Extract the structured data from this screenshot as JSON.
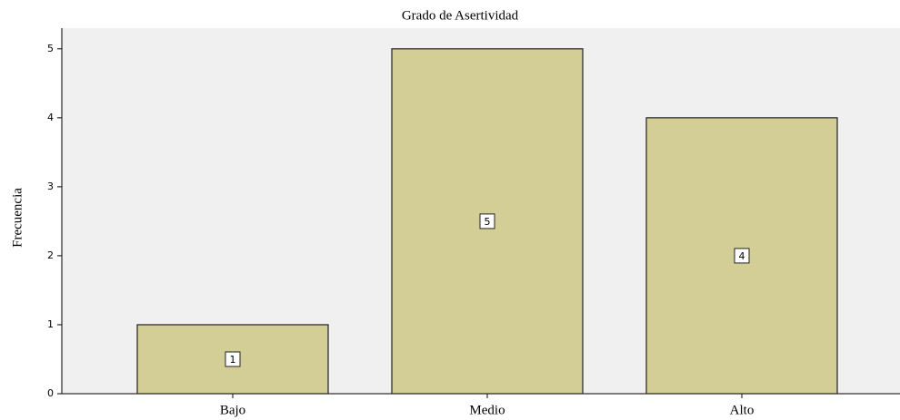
{
  "chart_data": {
    "type": "bar",
    "title": "Grado de Asertividad",
    "y_label": "Frecuencia",
    "categories": [
      "Bajo",
      "Medio",
      "Alto"
    ],
    "values": [
      1,
      5,
      4
    ],
    "color": "#d3cd96",
    "ylim": [
      0,
      5.3
    ],
    "yticks": [
      0,
      1,
      2,
      3,
      4,
      5
    ],
    "grid": false
  }
}
